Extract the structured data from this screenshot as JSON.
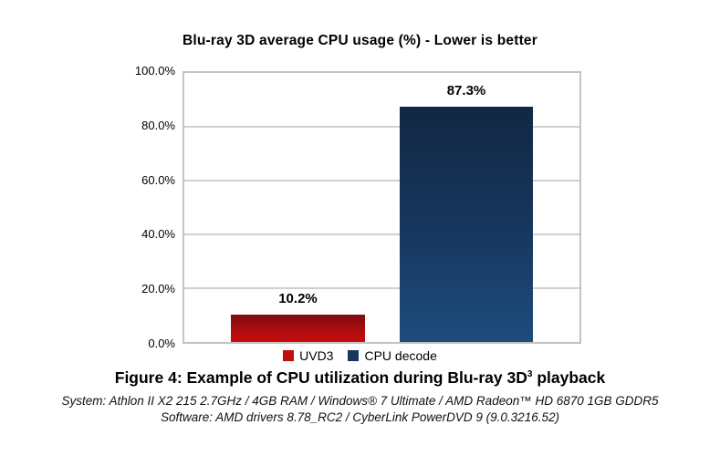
{
  "chart": {
    "title": "Blu-ray 3D average CPU usage (%) - Lower is better",
    "y_ticks": [
      "100.0%",
      "80.0%",
      "60.0%",
      "40.0%",
      "20.0%",
      "0.0%"
    ],
    "bars": [
      {
        "name": "UVD3",
        "value": 10.2,
        "label": "10.2%",
        "color": "#c00d0d"
      },
      {
        "name": "CPU decode",
        "value": 87.3,
        "label": "87.3%",
        "color": "#17375e"
      }
    ],
    "legend": [
      {
        "label": "UVD3",
        "color": "#c00d0d"
      },
      {
        "label": "CPU decode",
        "color": "#17375e"
      }
    ]
  },
  "chart_data": {
    "type": "bar",
    "categories": [
      "UVD3",
      "CPU decode"
    ],
    "values": [
      10.2,
      87.3
    ],
    "value_labels": [
      "10.2%",
      "87.3%"
    ],
    "title": "Blu-ray 3D average CPU usage (%) - Lower is better",
    "xlabel": "",
    "ylabel": "",
    "ylim": [
      0,
      100
    ],
    "y_tick_labels": [
      "0.0%",
      "20.0%",
      "40.0%",
      "60.0%",
      "80.0%",
      "100.0%"
    ],
    "grid": true,
    "legend_position": "bottom",
    "series_colors": {
      "UVD3": "#c00d0d",
      "CPU decode": "#17375e"
    },
    "bar_gradient": {
      "UVD3": [
        "#7d0b0e",
        "#cb0c0c"
      ],
      "CPU decode": [
        "#122743",
        "#1e4c7d"
      ]
    }
  },
  "caption": {
    "text_before": "Figure 4: Example of CPU utilization during Blu-ray 3D",
    "superscript": "3",
    "text_after": " playback"
  },
  "footer": {
    "system_line": "System: Athlon II X2 215 2.7GHz / 4GB RAM / Windows® 7 Ultimate / AMD Radeon™ HD 6870 1GB GDDR5",
    "software_line": "Software: AMD drivers 8.78_RC2 / CyberLink PowerDVD 9 (9.0.3216.52)"
  }
}
